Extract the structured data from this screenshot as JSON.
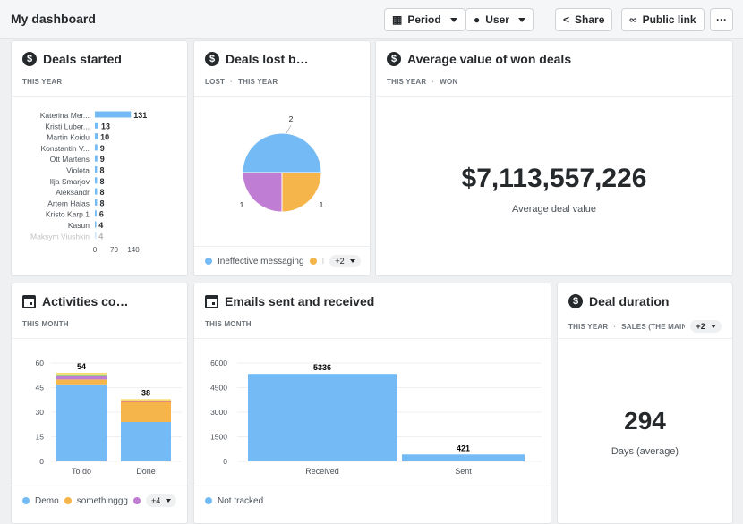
{
  "header": {
    "title": "My dashboard",
    "buttons": [
      {
        "label": "Period",
        "icon": "calendar-icon"
      },
      {
        "label": "User",
        "icon": "user-icon"
      },
      {
        "label": "Share",
        "icon": "share-icon"
      },
      {
        "label": "Public link",
        "icon": "link-icon"
      }
    ],
    "more": "···"
  },
  "cards": {
    "deals_started": {
      "title": "Deals started",
      "sub": [
        "THIS YEAR"
      ]
    },
    "deals_lost": {
      "title": "Deals lost b…",
      "sub": [
        "LOST",
        "THIS YEAR"
      ],
      "legend": [
        "Ineffective messaging",
        "I"
      ],
      "more": "+2"
    },
    "avg_value": {
      "title": "Average value of won deals",
      "sub": [
        "THIS YEAR",
        "WON"
      ],
      "value": "$7,113,557,226",
      "caption": "Average deal value"
    },
    "activities": {
      "title": "Activities co…",
      "sub": [
        "THIS MONTH"
      ],
      "legend": [
        "Demo",
        "somethinggg",
        ""
      ],
      "more": "+4"
    },
    "emails": {
      "title": "Emails sent and received",
      "sub": [
        "THIS MONTH"
      ],
      "legend": [
        "Not tracked"
      ]
    },
    "duration": {
      "title": "Deal duration",
      "sub": [
        "THIS YEAR",
        "SALES (THE MAIN O"
      ],
      "more": "+2",
      "value": "294",
      "caption": "Days (average)"
    }
  },
  "colors": {
    "blue": "#74bbf5",
    "orange": "#f5b54a",
    "purple": "#c07dd4",
    "green": "#9ccc8a",
    "yellow": "#f6dc6e",
    "red": "#e9857a"
  },
  "chart_data": [
    {
      "type": "bar",
      "orientation": "horizontal",
      "categories": [
        "Katerina Mer...",
        "Kristi Luber...",
        "Martin Koidu",
        "Konstantin V...",
        "Ott Martens",
        "Violeta",
        "Ilja Smarjov",
        "Aleksandr",
        "Artem Halas",
        "Kristo Karp 1",
        "Kasun",
        "Maksym Viushkin"
      ],
      "values": [
        131,
        13,
        10,
        9,
        9,
        8,
        8,
        8,
        8,
        6,
        4,
        4
      ],
      "xlim": [
        0,
        140
      ],
      "xticks": [
        0,
        70,
        140
      ]
    },
    {
      "type": "pie",
      "values": [
        2,
        1,
        1
      ],
      "labels": [
        "2",
        "1",
        "1"
      ],
      "colors": [
        "#74bbf5",
        "#f5b54a",
        "#c07dd4"
      ]
    },
    {
      "type": "bar",
      "stacked": true,
      "categories": [
        "To do",
        "Done"
      ],
      "totals": [
        54,
        38
      ],
      "series": [
        {
          "name": "Demo",
          "color": "#74bbf5",
          "values": [
            47,
            24
          ]
        },
        {
          "name": "somethinggg",
          "color": "#f5b54a",
          "values": [
            3,
            12
          ]
        },
        {
          "color": "#c07dd4",
          "values": [
            2,
            0
          ]
        },
        {
          "color": "#e9857a",
          "values": [
            0,
            1
          ]
        },
        {
          "color": "#9ccc8a",
          "values": [
            1,
            0
          ]
        },
        {
          "color": "#f6dc6e",
          "values": [
            1,
            1
          ]
        }
      ],
      "ylim": [
        0,
        60
      ],
      "yticks": [
        0,
        15,
        30,
        45,
        60
      ]
    },
    {
      "type": "bar",
      "categories": [
        "Received",
        "Sent"
      ],
      "values": [
        5336,
        421
      ],
      "ylim": [
        0,
        6000
      ],
      "yticks": [
        0,
        1500,
        3000,
        4500,
        6000
      ],
      "color": "#74bbf5"
    }
  ]
}
